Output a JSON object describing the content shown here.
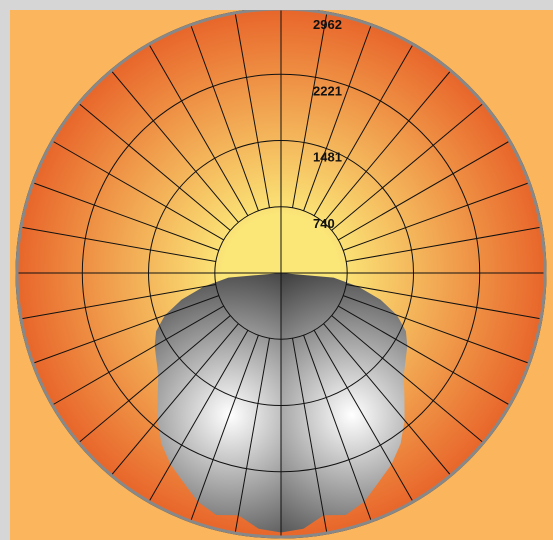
{
  "chart_data": {
    "type": "polar",
    "radial_axis": {
      "tick_labels": [
        "740",
        "1481",
        "2221",
        "2962"
      ],
      "tick_values": [
        740,
        1481,
        2221,
        2962
      ],
      "max": 2962
    },
    "angular_grid_step_deg": 10,
    "colors": {
      "background_inner": "#fbe678",
      "background_outer": "#e8652a",
      "panel": "#fbb65d",
      "frame": "#d6d6d6",
      "lobe_light": "#ffffff",
      "lobe_dark": "#1c1c1c",
      "grid": "#111111",
      "outline": "#888888"
    },
    "series": [
      {
        "values_by_angle_deg": {
          "0": 2900,
          "5": 2870,
          "10": 2750,
          "15": 2800,
          "20": 2720,
          "25": 2580,
          "30": 2470,
          "35": 2330,
          "40": 2150,
          "45": 1950,
          "50": 1790,
          "55": 1700,
          "60": 1630,
          "65": 1540,
          "70": 1380,
          "75": 1150,
          "80": 880,
          "85": 590,
          "90": 0
        }
      }
    ]
  }
}
